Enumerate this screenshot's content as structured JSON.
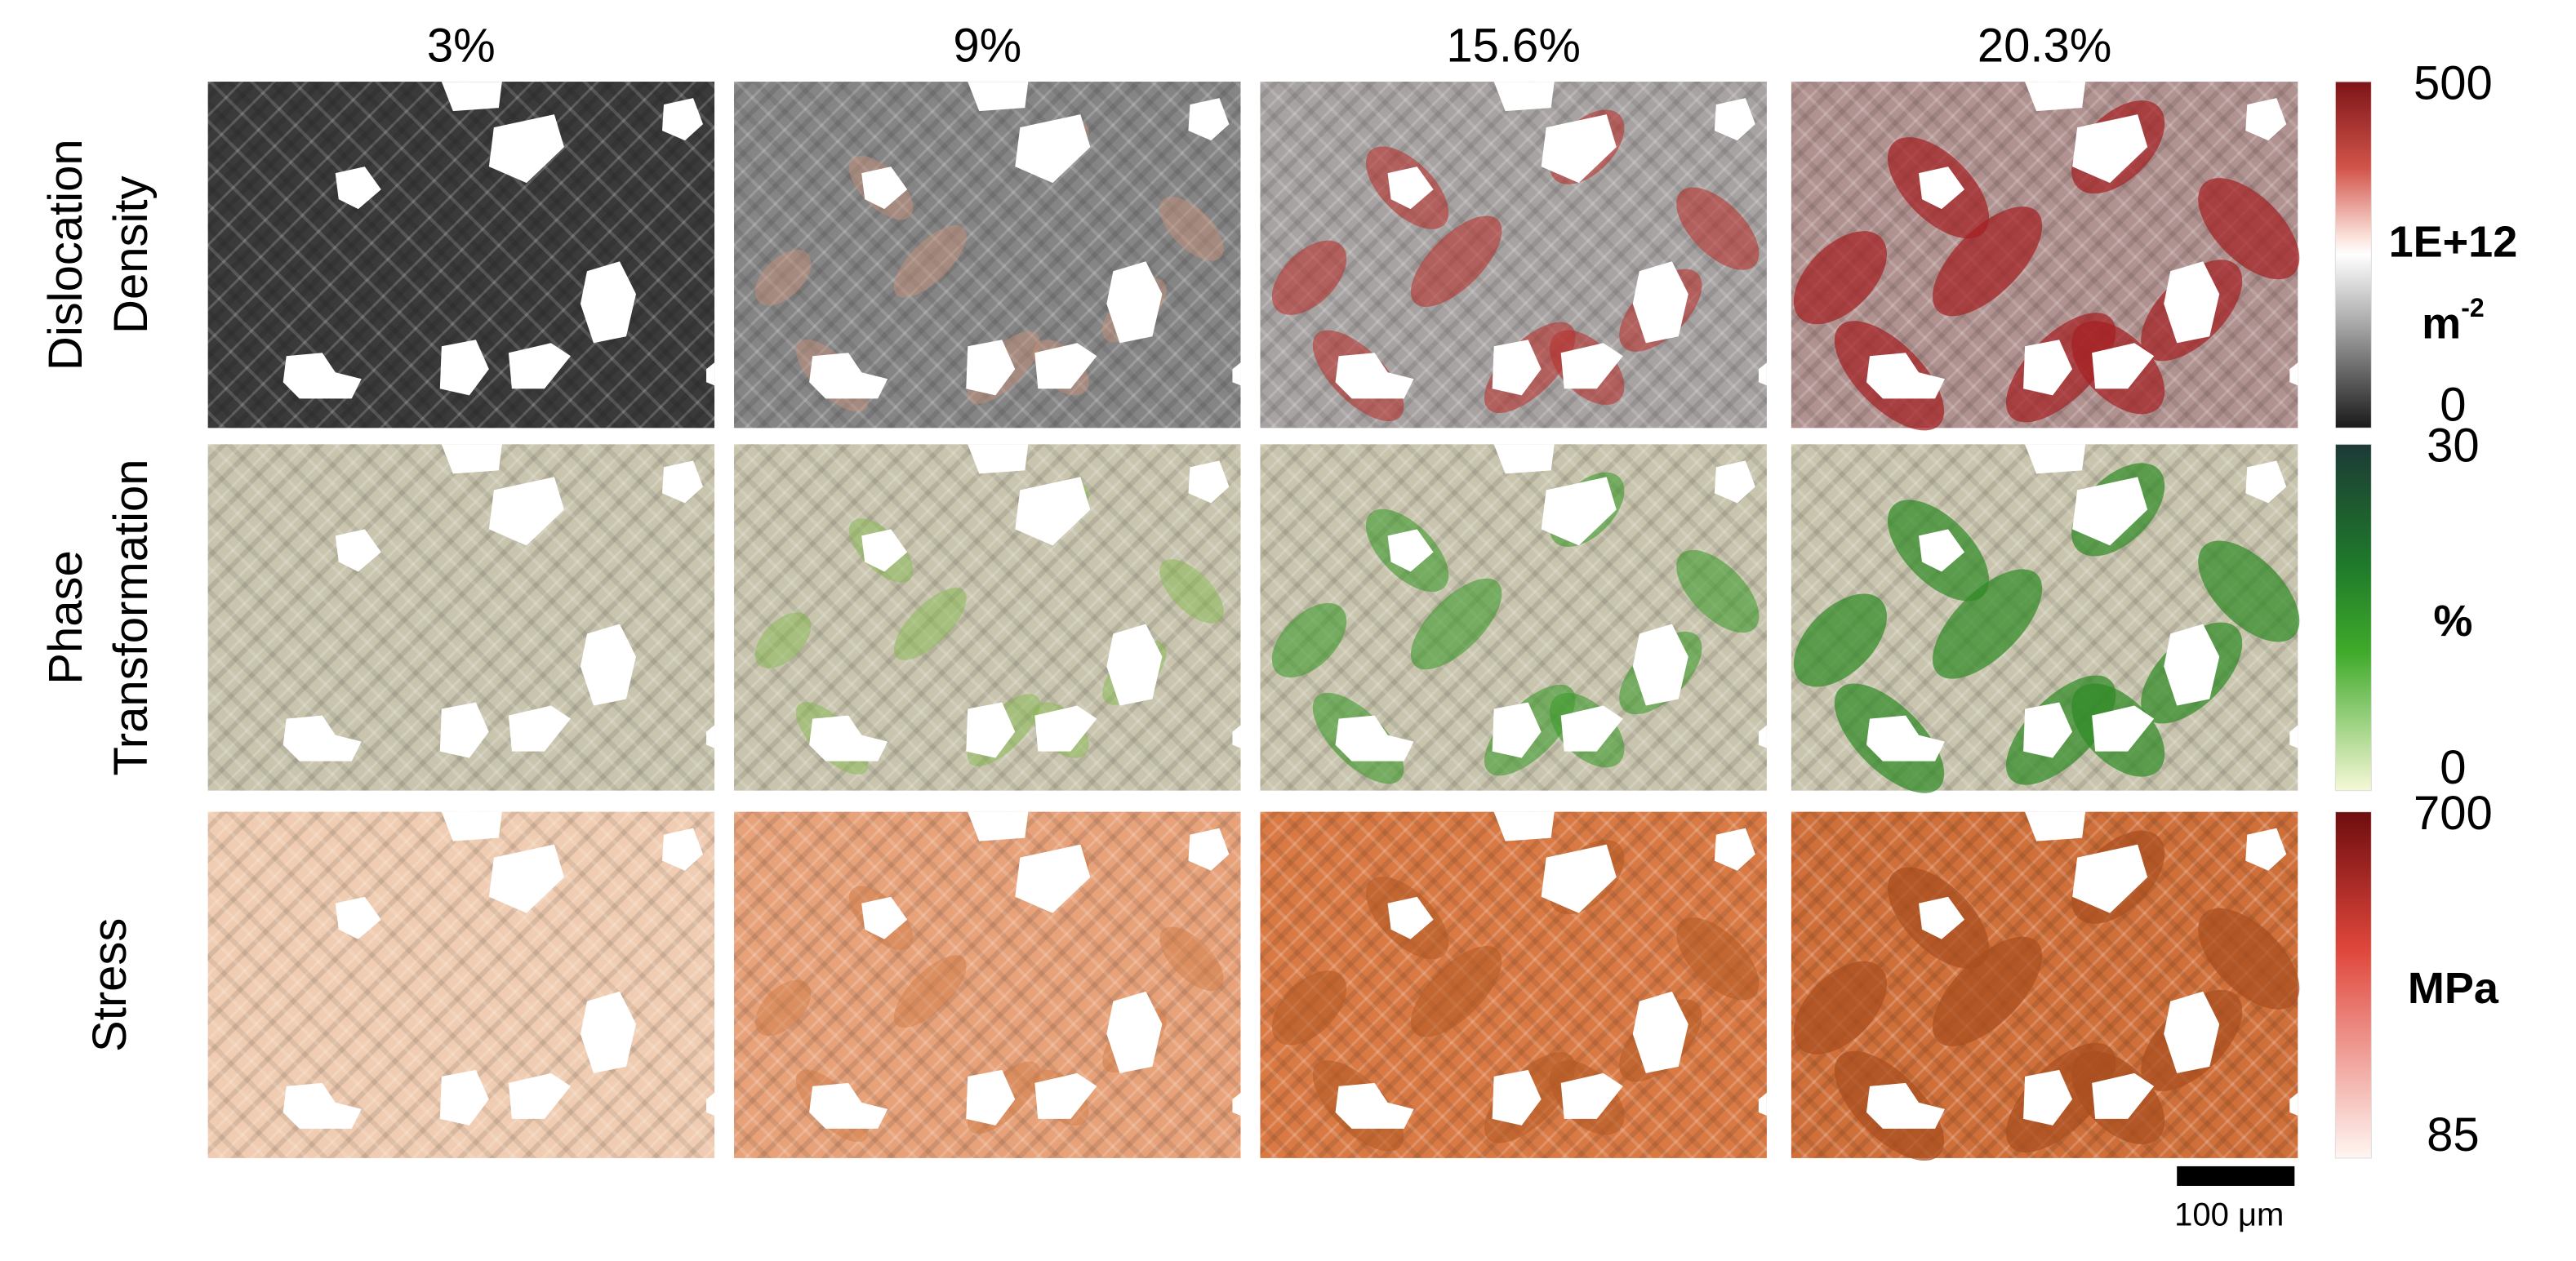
{
  "column_headers": [
    "3%",
    "9%",
    "15.6%",
    "20.3%"
  ],
  "rows": [
    {
      "label": [
        "Dislocation",
        "Density"
      ],
      "colorbar": {
        "max": "500",
        "unit": [
          "1E+12",
          "m",
          "-2"
        ],
        "min": "0"
      }
    },
    {
      "label": [
        "Phase",
        "Transformation"
      ],
      "colorbar": {
        "max": "30",
        "unit": [
          "%"
        ],
        "min": "0"
      }
    },
    {
      "label": [
        "Stress"
      ],
      "colorbar": {
        "max": "700",
        "unit": [
          "MPa"
        ],
        "min": "85"
      }
    }
  ],
  "scale_bar": "100 μm"
}
